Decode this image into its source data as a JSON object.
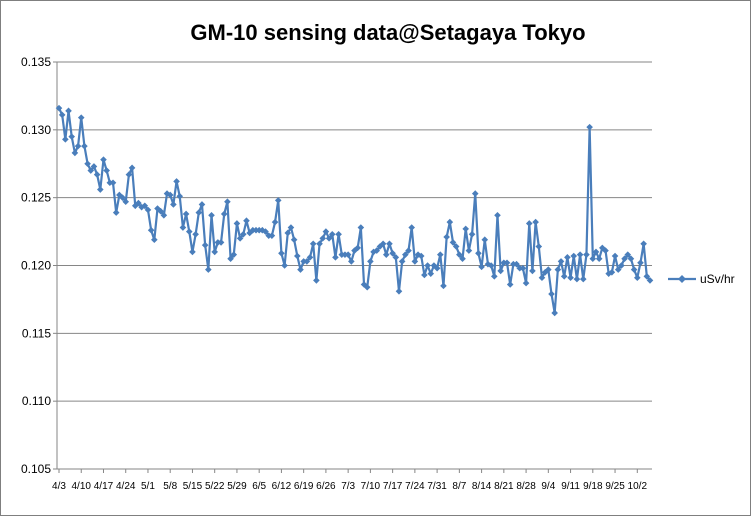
{
  "chart_data": {
    "type": "line",
    "title": "GM-10 sensing data@Setagaya Tokyo",
    "xlabel": "",
    "ylabel": "",
    "ylim": [
      0.105,
      0.135
    ],
    "yticks": [
      "0.135",
      "0.130",
      "0.125",
      "0.120",
      "0.115",
      "0.110",
      "0.105"
    ],
    "xtick_labels": [
      "4/3",
      "4/10",
      "4/17",
      "4/24",
      "5/1",
      "5/8",
      "5/15",
      "5/22",
      "5/29",
      "6/5",
      "6/12",
      "6/19",
      "6/26",
      "7/3",
      "7/10",
      "7/17",
      "7/24",
      "7/31",
      "8/7",
      "8/14",
      "8/21",
      "8/28",
      "9/4",
      "9/11",
      "9/18",
      "9/25",
      "10/2"
    ],
    "grid": "horizontal",
    "legend_position": "right",
    "series": [
      {
        "name": "uSv/hr",
        "color": "#4a7ebb",
        "marker": "diamond",
        "start_date": "4/3",
        "values": [
          0.1316,
          0.1311,
          0.1293,
          0.1314,
          0.1295,
          0.1283,
          0.1288,
          0.1309,
          0.1288,
          0.1275,
          0.127,
          0.1273,
          0.1267,
          0.1256,
          0.1278,
          0.127,
          0.1261,
          0.1261,
          0.1239,
          0.1252,
          0.125,
          0.1247,
          0.1267,
          0.1272,
          0.1244,
          0.1246,
          0.1243,
          0.1244,
          0.1241,
          0.1226,
          0.1219,
          0.1242,
          0.124,
          0.1237,
          0.1253,
          0.1252,
          0.1245,
          0.1262,
          0.1251,
          0.1228,
          0.1238,
          0.1225,
          0.121,
          0.1223,
          0.1239,
          0.1245,
          0.1215,
          0.1197,
          0.1237,
          0.121,
          0.1217,
          0.1217,
          0.1238,
          0.1247,
          0.1205,
          0.1208,
          0.1231,
          0.122,
          0.1223,
          0.1233,
          0.1224,
          0.1226,
          0.1226,
          0.1226,
          0.1226,
          0.1225,
          0.1222,
          0.1222,
          0.1232,
          0.1248,
          0.1209,
          0.12,
          0.1224,
          0.1228,
          0.1219,
          0.1207,
          0.1197,
          0.1203,
          0.1203,
          0.1206,
          0.1216,
          0.1189,
          0.1216,
          0.122,
          0.1225,
          0.122,
          0.1223,
          0.1206,
          0.1223,
          0.1208,
          0.1208,
          0.1208,
          0.1203,
          0.1211,
          0.1213,
          0.1228,
          0.1186,
          0.1184,
          0.1203,
          0.121,
          0.1211,
          0.1214,
          0.1216,
          0.1208,
          0.1216,
          0.1209,
          0.1206,
          0.1181,
          0.1203,
          0.1208,
          0.1211,
          0.1228,
          0.1203,
          0.1208,
          0.1207,
          0.1193,
          0.12,
          0.1194,
          0.12,
          0.1198,
          0.1208,
          0.1185,
          0.1221,
          0.1232,
          0.1217,
          0.1214,
          0.1208,
          0.1205,
          0.1227,
          0.1211,
          0.1223,
          0.1253,
          0.1209,
          0.1199,
          0.1219,
          0.1201,
          0.12,
          0.1192,
          0.1237,
          0.1196,
          0.1202,
          0.1202,
          0.1186,
          0.1201,
          0.1201,
          0.1198,
          0.1198,
          0.1187,
          0.1231,
          0.1196,
          0.1232,
          0.1214,
          0.1191,
          0.1195,
          0.1197,
          0.1179,
          0.1165,
          0.1197,
          0.1203,
          0.1192,
          0.1206,
          0.1191,
          0.1207,
          0.119,
          0.1208,
          0.119,
          0.1208,
          0.1302,
          0.1205,
          0.121,
          0.1205,
          0.1213,
          0.1211,
          0.1194,
          0.1195,
          0.1207,
          0.1197,
          0.12,
          0.1205,
          0.1208,
          0.1205,
          0.1197,
          0.1191,
          0.1202,
          0.1216,
          0.1192,
          0.1189
        ]
      }
    ]
  }
}
